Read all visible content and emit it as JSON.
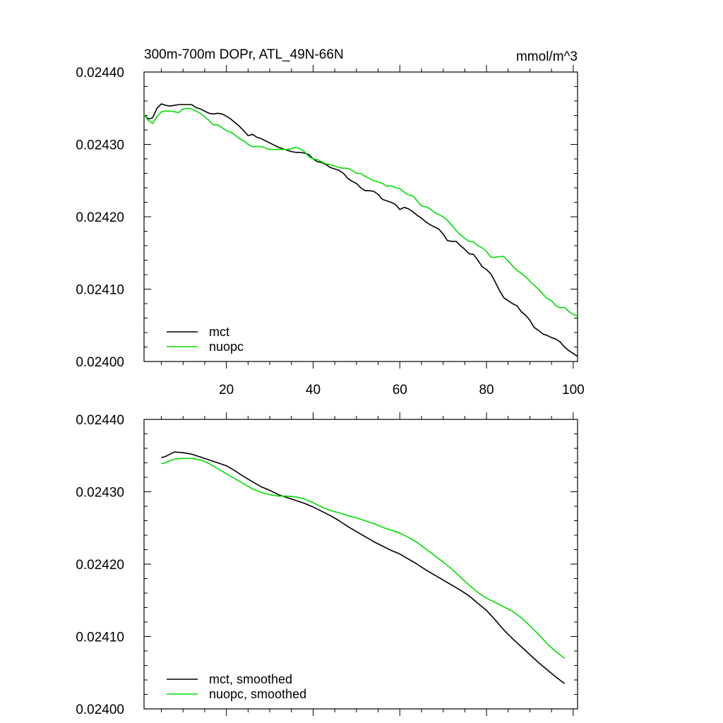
{
  "chart_data": [
    {
      "type": "line",
      "title": "300m-700m DOPr, ATL_49N-66N",
      "units": "mmol/m^3",
      "xlabel": "",
      "ylabel": "",
      "xlim": [
        1,
        101
      ],
      "ylim": [
        0.024,
        0.0244
      ],
      "xticks": [
        20,
        40,
        60,
        80,
        100
      ],
      "xtick_labels": [
        "20",
        "40",
        "60",
        "80",
        "100"
      ],
      "yticks": [
        0.024,
        0.0241,
        0.0242,
        0.0243,
        0.0244
      ],
      "ytick_labels": [
        "0.02400",
        "0.02410",
        "0.02420",
        "0.02430",
        "0.02440"
      ],
      "legend_position": "bottom-left",
      "series": [
        {
          "name": "mct",
          "color": "#000000",
          "x": [
            1,
            2,
            3,
            4,
            5,
            6,
            7,
            8,
            9,
            10,
            11,
            12,
            13,
            14,
            15,
            16,
            17,
            18,
            19,
            20,
            21,
            22,
            23,
            24,
            25,
            26,
            27,
            28,
            29,
            30,
            31,
            32,
            33,
            34,
            35,
            36,
            37,
            38,
            39,
            40,
            41,
            42,
            43,
            44,
            45,
            46,
            47,
            48,
            49,
            50,
            51,
            52,
            53,
            54,
            55,
            56,
            57,
            58,
            59,
            60,
            61,
            62,
            63,
            64,
            65,
            66,
            67,
            68,
            69,
            70,
            71,
            72,
            73,
            74,
            75,
            76,
            77,
            78,
            79,
            80,
            81,
            82,
            83,
            84,
            85,
            86,
            87,
            88,
            89,
            90,
            91,
            92,
            93,
            94,
            95,
            96,
            97,
            98,
            99,
            100,
            101
          ],
          "y": [
            0.024341,
            0.024335,
            0.024337,
            0.02435,
            0.024356,
            0.024354,
            0.024353,
            0.024354,
            0.024355,
            0.024355,
            0.024355,
            0.024355,
            0.024351,
            0.024349,
            0.024346,
            0.024343,
            0.024342,
            0.024343,
            0.024342,
            0.024339,
            0.024335,
            0.02433,
            0.024325,
            0.024319,
            0.024312,
            0.024314,
            0.02431,
            0.024308,
            0.024305,
            0.024302,
            0.024299,
            0.024296,
            0.024294,
            0.024292,
            0.02429,
            0.024289,
            0.024289,
            0.024288,
            0.024286,
            0.02428,
            0.024276,
            0.024275,
            0.024272,
            0.024268,
            0.024266,
            0.024264,
            0.02426,
            0.024253,
            0.024249,
            0.024246,
            0.02424,
            0.024236,
            0.024236,
            0.024235,
            0.024231,
            0.024224,
            0.024222,
            0.02422,
            0.024217,
            0.02421,
            0.024213,
            0.024211,
            0.024207,
            0.024202,
            0.024198,
            0.024193,
            0.024189,
            0.024186,
            0.024183,
            0.024176,
            0.024167,
            0.024166,
            0.024166,
            0.02416,
            0.024155,
            0.024149,
            0.024148,
            0.02414,
            0.024131,
            0.024127,
            0.024121,
            0.02411,
            0.024098,
            0.024088,
            0.024084,
            0.02408,
            0.024077,
            0.024069,
            0.024064,
            0.024057,
            0.024047,
            0.024043,
            0.024038,
            0.024036,
            0.024033,
            0.024031,
            0.024027,
            0.02402,
            0.024015,
            0.024011,
            0.024007
          ]
        },
        {
          "name": "nuopc",
          "color": "#00dd00",
          "x": [
            1,
            2,
            3,
            4,
            5,
            6,
            7,
            8,
            9,
            10,
            11,
            12,
            13,
            14,
            15,
            16,
            17,
            18,
            19,
            20,
            21,
            22,
            23,
            24,
            25,
            26,
            27,
            28,
            29,
            30,
            31,
            32,
            33,
            34,
            35,
            36,
            37,
            38,
            39,
            40,
            41,
            42,
            43,
            44,
            45,
            46,
            47,
            48,
            49,
            50,
            51,
            52,
            53,
            54,
            55,
            56,
            57,
            58,
            59,
            60,
            61,
            62,
            63,
            64,
            65,
            66,
            67,
            68,
            69,
            70,
            71,
            72,
            73,
            74,
            75,
            76,
            77,
            78,
            79,
            80,
            81,
            82,
            83,
            84,
            85,
            86,
            87,
            88,
            89,
            90,
            91,
            92,
            93,
            94,
            95,
            96,
            97,
            98,
            99,
            100,
            101
          ],
          "y": [
            0.024341,
            0.024333,
            0.024329,
            0.024339,
            0.024345,
            0.024346,
            0.024346,
            0.024345,
            0.024344,
            0.024349,
            0.02435,
            0.024349,
            0.024346,
            0.024343,
            0.024338,
            0.024333,
            0.024327,
            0.024327,
            0.024323,
            0.024319,
            0.024317,
            0.024313,
            0.024308,
            0.024305,
            0.0243,
            0.024297,
            0.024297,
            0.024297,
            0.024295,
            0.024293,
            0.024293,
            0.024293,
            0.024293,
            0.024293,
            0.024294,
            0.024296,
            0.024294,
            0.02429,
            0.024283,
            0.02428,
            0.024279,
            0.024276,
            0.024273,
            0.024272,
            0.02427,
            0.024268,
            0.024267,
            0.024267,
            0.024264,
            0.02426,
            0.02426,
            0.024256,
            0.024253,
            0.02425,
            0.024248,
            0.024246,
            0.024242,
            0.024243,
            0.02424,
            0.024239,
            0.024234,
            0.02423,
            0.024229,
            0.024222,
            0.024215,
            0.024214,
            0.024211,
            0.024206,
            0.024203,
            0.0242,
            0.024195,
            0.024188,
            0.024181,
            0.024175,
            0.02417,
            0.024166,
            0.024165,
            0.02416,
            0.024157,
            0.024152,
            0.024144,
            0.024144,
            0.024145,
            0.024145,
            0.024139,
            0.024132,
            0.024126,
            0.024122,
            0.024117,
            0.024111,
            0.024105,
            0.0241,
            0.024093,
            0.024087,
            0.024084,
            0.024077,
            0.024074,
            0.024075,
            0.024069,
            0.024065,
            0.024063
          ]
        }
      ]
    },
    {
      "type": "line",
      "title": "",
      "xlabel": "",
      "ylabel": "",
      "xlim": [
        1,
        101
      ],
      "ylim": [
        0.024,
        0.0244
      ],
      "xticks": [
        20,
        40,
        60,
        80,
        100
      ],
      "yticks": [
        0.024,
        0.0241,
        0.0242,
        0.0243,
        0.0244
      ],
      "ytick_labels": [
        "0.02400",
        "0.02410",
        "0.02420",
        "0.02430",
        "0.02440"
      ],
      "legend_position": "bottom-left",
      "series": [
        {
          "name": "mct, smoothed",
          "color": "#000000",
          "x": [
            5,
            6,
            7,
            8,
            10,
            12,
            14,
            16,
            18,
            20,
            22,
            24,
            26,
            28,
            30,
            32,
            34,
            36,
            38,
            40,
            42,
            44,
            46,
            48,
            50,
            52,
            54,
            56,
            58,
            60,
            62,
            64,
            66,
            68,
            70,
            72,
            74,
            76,
            78,
            80,
            82,
            84,
            86,
            88,
            90,
            92,
            94,
            96,
            98
          ],
          "y": [
            0.024347,
            0.024349,
            0.024352,
            0.024355,
            0.024354,
            0.024352,
            0.024348,
            0.024344,
            0.02434,
            0.024336,
            0.024329,
            0.024321,
            0.024314,
            0.024307,
            0.024302,
            0.024296,
            0.024292,
            0.024288,
            0.024284,
            0.024279,
            0.024273,
            0.024267,
            0.02426,
            0.024252,
            0.024245,
            0.024238,
            0.024231,
            0.024225,
            0.024219,
            0.024214,
            0.024207,
            0.0242,
            0.024192,
            0.024185,
            0.024178,
            0.024171,
            0.024164,
            0.024156,
            0.024146,
            0.024136,
            0.024123,
            0.024109,
            0.024097,
            0.024086,
            0.024075,
            0.024064,
            0.024054,
            0.024044,
            0.024035
          ]
        },
        {
          "name": "nuopc, smoothed",
          "color": "#00dd00",
          "x": [
            5,
            6,
            7,
            8,
            10,
            12,
            14,
            16,
            18,
            20,
            22,
            24,
            26,
            28,
            30,
            32,
            34,
            36,
            38,
            40,
            42,
            44,
            46,
            48,
            50,
            52,
            54,
            56,
            58,
            60,
            62,
            64,
            66,
            68,
            70,
            72,
            74,
            76,
            78,
            80,
            82,
            84,
            86,
            88,
            90,
            92,
            94,
            96,
            98
          ],
          "y": [
            0.024339,
            0.02434,
            0.024343,
            0.024345,
            0.024346,
            0.024346,
            0.024344,
            0.024339,
            0.024332,
            0.024325,
            0.024318,
            0.024311,
            0.024304,
            0.024299,
            0.024296,
            0.024294,
            0.024294,
            0.024293,
            0.02429,
            0.024285,
            0.024279,
            0.024274,
            0.024271,
            0.024267,
            0.024264,
            0.02426,
            0.024256,
            0.024251,
            0.024247,
            0.024243,
            0.024237,
            0.02423,
            0.024221,
            0.024212,
            0.024203,
            0.024193,
            0.024182,
            0.024171,
            0.024161,
            0.024153,
            0.024147,
            0.024141,
            0.024135,
            0.024126,
            0.024115,
            0.024103,
            0.02409,
            0.024079,
            0.02407
          ]
        }
      ]
    }
  ]
}
